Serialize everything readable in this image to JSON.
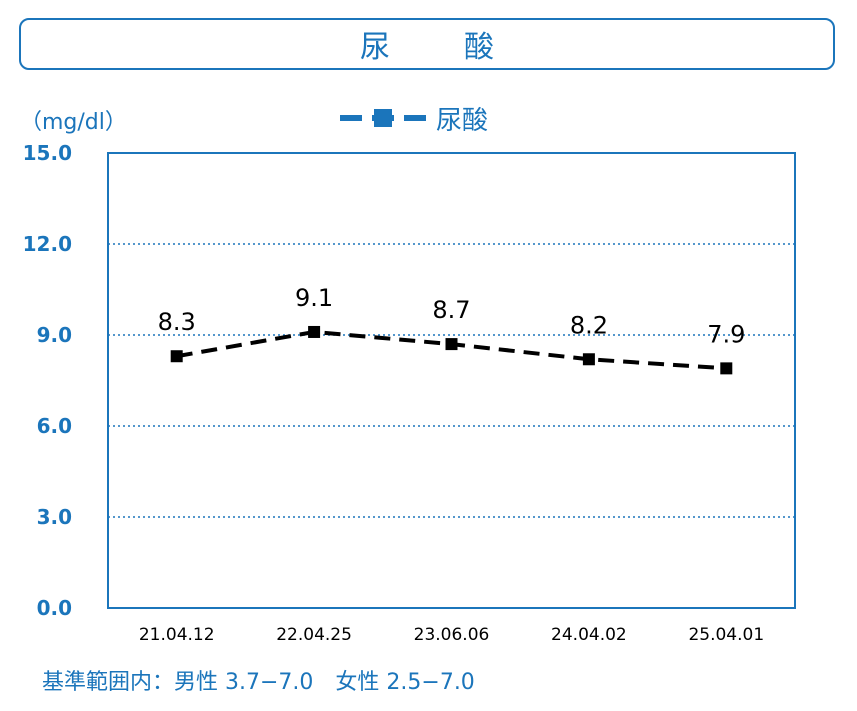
{
  "title": "尿　酸",
  "unit_label": "（mg/dl）",
  "footer": "基準範囲内：男性 3.7−7.0　女性 2.5−7.0",
  "colors": {
    "accent": "#1b75bb",
    "series_line": "#000000",
    "grid": "#1b75bb"
  },
  "chart_data": {
    "type": "line",
    "categories": [
      "21.04.12",
      "22.04.25",
      "23.06.06",
      "24.04.02",
      "25.04.01"
    ],
    "series": [
      {
        "name": "尿酸",
        "values": [
          8.3,
          9.1,
          8.7,
          8.2,
          7.9
        ],
        "line_style": "dashed",
        "marker": "square"
      }
    ],
    "data_labels": [
      "8.3",
      "9.1",
      "8.7",
      "8.2",
      "7.9"
    ],
    "yticks": [
      "0.0",
      "3.0",
      "6.0",
      "9.0",
      "12.0",
      "15.0"
    ],
    "ylim": [
      0,
      15
    ],
    "grid": true,
    "legend_position": "top-center"
  }
}
